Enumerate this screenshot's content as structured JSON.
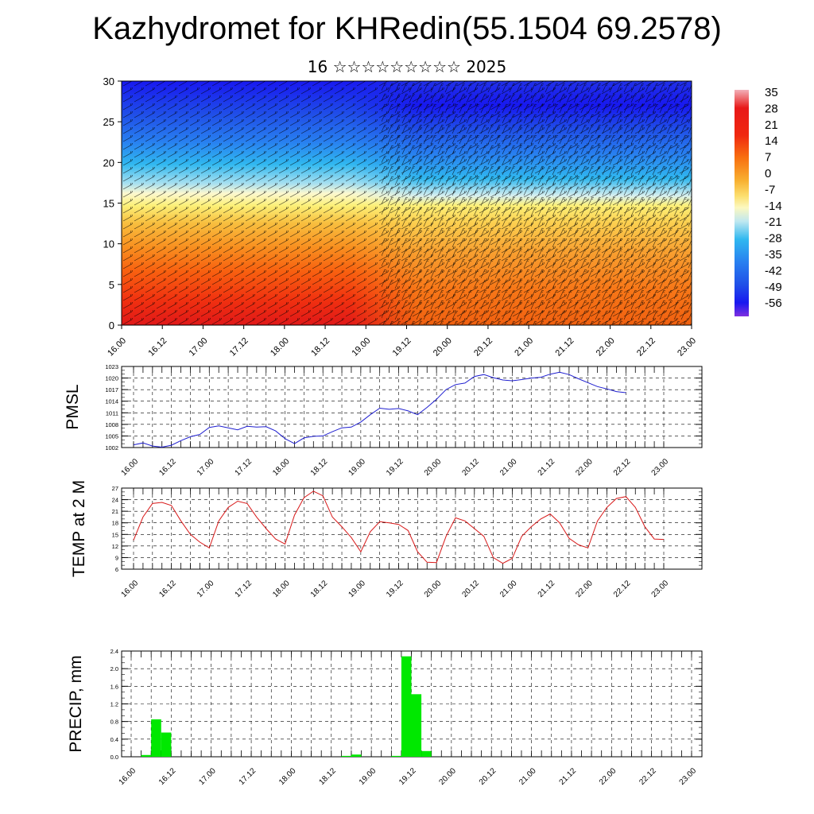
{
  "header": {
    "title": "Kazhydromet for KHRedin(55.1504 69.2578)",
    "subtitle": "16 ☆☆☆☆☆☆☆☆☆ 2025"
  },
  "time_labels": [
    "16.00",
    "16.12",
    "17.00",
    "17.12",
    "18.00",
    "18.12",
    "19.00",
    "19.12",
    "20.00",
    "20.12",
    "21.00",
    "21.12",
    "22.00",
    "22.12",
    "23.00"
  ],
  "colorbar": {
    "labels": [
      "35",
      "28",
      "21",
      "14",
      "7",
      "0",
      "-7",
      "-14",
      "-21",
      "-28",
      "-35",
      "-42",
      "-49",
      "-56"
    ],
    "colors": [
      "#f2a0a8",
      "#e01818",
      "#f03010",
      "#f86010",
      "#f89020",
      "#f8c040",
      "#fcf078",
      "#fcf8d0",
      "#a8e0f0",
      "#30b8f0",
      "#2880f0",
      "#2050e8",
      "#1818f0",
      "#7828e8"
    ]
  },
  "chart_data": [
    {
      "type": "heatmap",
      "title": "",
      "ylabel": "",
      "ylim": [
        0,
        30
      ],
      "yticks": [
        "0",
        "5",
        "10",
        "15",
        "20",
        "25",
        "30"
      ],
      "x_range": [
        "16.00",
        "23.00"
      ],
      "color_scale": [
        -56,
        35
      ],
      "overlay": "wind barbs",
      "description_values": {
        "surface_layer_0_5": "21 to 35 (warmest 16.12-18.12)",
        "mid_layer_5_15": "0 to 14",
        "upper_layer_20_30": "-49 to -56"
      }
    },
    {
      "type": "line",
      "ylabel": "PMSL",
      "ylim": [
        1002,
        1023
      ],
      "yticks": [
        "1002",
        "1005",
        "1008",
        "1011",
        "1014",
        "1017",
        "1020",
        "1023"
      ],
      "color": "#1f1fd0",
      "x_step_hours": 3,
      "values": [
        1002.7,
        1003.2,
        1002.4,
        1002.1,
        1002.6,
        1003.8,
        1004.8,
        1005.4,
        1007.2,
        1007.6,
        1007.1,
        1006.6,
        1007.5,
        1007.3,
        1007.4,
        1006.3,
        1004.3,
        1003.0,
        1004.5,
        1004.9,
        1005.0,
        1006.1,
        1007.1,
        1007.3,
        1008.6,
        1010.5,
        1012.2,
        1011.9,
        1012.1,
        1011.5,
        1010.5,
        1012.4,
        1014.5,
        1017.0,
        1018.3,
        1018.7,
        1020.4,
        1020.9,
        1020.1,
        1019.5,
        1019.3,
        1019.6,
        1020.0,
        1020.2,
        1021.0,
        1021.5,
        1020.9,
        1019.8,
        1018.8,
        1017.8,
        1017.2,
        1016.5,
        1016.2
      ]
    },
    {
      "type": "line",
      "ylabel": "TEMP at 2 M",
      "ylim": [
        6,
        27
      ],
      "yticks": [
        "6",
        "9",
        "12",
        "15",
        "18",
        "21",
        "24",
        "27"
      ],
      "color": "#d81818",
      "x_step_hours": 3,
      "values": [
        13.5,
        19.5,
        23.0,
        23.3,
        22.5,
        18.5,
        15.0,
        13.0,
        11.5,
        18.5,
        22.0,
        23.6,
        23.0,
        19.5,
        16.5,
        13.8,
        12.5,
        20.0,
        24.5,
        26.2,
        25.0,
        19.5,
        17.0,
        14.2,
        10.5,
        15.7,
        18.3,
        18.0,
        17.6,
        16.0,
        10.5,
        7.8,
        7.7,
        14.5,
        19.3,
        18.5,
        16.5,
        14.5,
        9.0,
        7.5,
        8.8,
        14.5,
        17.0,
        19.0,
        20.3,
        18.0,
        14.0,
        12.3,
        11.5,
        18.5,
        22.0,
        24.3,
        24.8,
        22.0,
        17.0,
        13.8,
        13.7
      ]
    },
    {
      "type": "bar",
      "ylabel": "PRECIP, mm",
      "ylim": [
        0,
        2.4
      ],
      "yticks": [
        "0.0",
        "0.4",
        "0.8",
        "1.2",
        "1.6",
        "2.0",
        "2.4"
      ],
      "color": "#00e800",
      "bar_width_hours": 3,
      "bars": [
        {
          "t_hours": 3,
          "value": 0.04
        },
        {
          "t_hours": 6,
          "value": 0.85
        },
        {
          "t_hours": 9,
          "value": 0.55
        },
        {
          "t_hours": 63,
          "value": 0.02
        },
        {
          "t_hours": 66,
          "value": 0.05
        },
        {
          "t_hours": 78,
          "value": 0.02
        },
        {
          "t_hours": 81,
          "value": 2.28
        },
        {
          "t_hours": 84,
          "value": 1.42
        },
        {
          "t_hours": 87,
          "value": 0.13
        }
      ]
    }
  ]
}
